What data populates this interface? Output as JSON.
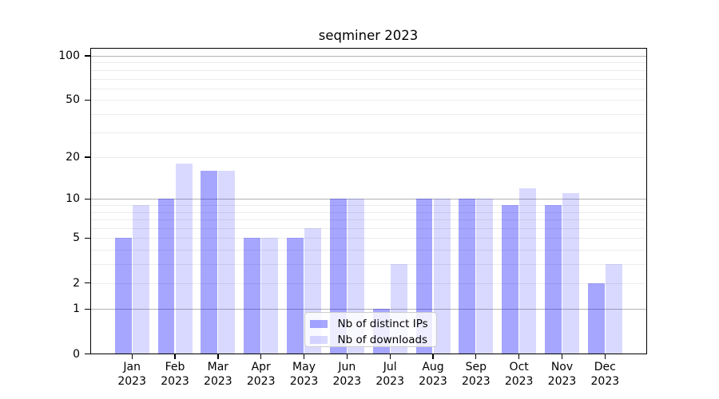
{
  "chart_data": {
    "type": "bar",
    "title": "seqminer 2023",
    "categories": [
      {
        "month": "Jan",
        "year": "2023"
      },
      {
        "month": "Feb",
        "year": "2023"
      },
      {
        "month": "Mar",
        "year": "2023"
      },
      {
        "month": "Apr",
        "year": "2023"
      },
      {
        "month": "May",
        "year": "2023"
      },
      {
        "month": "Jun",
        "year": "2023"
      },
      {
        "month": "Jul",
        "year": "2023"
      },
      {
        "month": "Aug",
        "year": "2023"
      },
      {
        "month": "Sep",
        "year": "2023"
      },
      {
        "month": "Oct",
        "year": "2023"
      },
      {
        "month": "Nov",
        "year": "2023"
      },
      {
        "month": "Dec",
        "year": "2023"
      }
    ],
    "series": [
      {
        "name": "Nb of distinct IPs",
        "color": "rgba(0,0,255,0.35)",
        "values": [
          5,
          10,
          16,
          5,
          5,
          10,
          1,
          10,
          10,
          9,
          9,
          2
        ]
      },
      {
        "name": "Nb of downloads",
        "color": "rgba(0,0,255,0.15)",
        "values": [
          9,
          18,
          16,
          5,
          6,
          10,
          3,
          10,
          10,
          12,
          11,
          3
        ]
      }
    ],
    "yscale": "log1p",
    "ylim": [
      0,
      115
    ],
    "yticks": [
      0,
      1,
      2,
      5,
      10,
      20,
      50,
      100
    ],
    "grid_major": [
      1,
      10,
      100
    ],
    "grid_minor": [
      2,
      3,
      4,
      5,
      6,
      7,
      8,
      9,
      20,
      30,
      40,
      50,
      60,
      70,
      80,
      90
    ],
    "legend_position": "lower center",
    "xlabel": "",
    "ylabel": ""
  },
  "colors": {
    "grid_minor": "#ececec",
    "grid_major": "#b3b3b3",
    "spine": "#000000",
    "legend_border": "#cccccc",
    "legend_bg": "rgba(255,255,255,0.8)"
  }
}
